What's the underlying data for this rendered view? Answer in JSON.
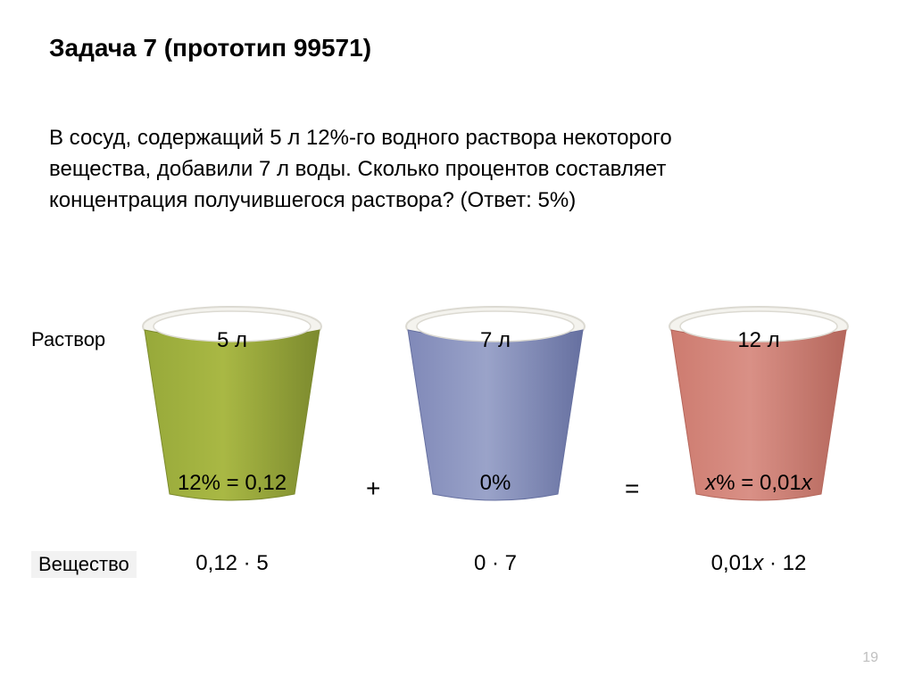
{
  "title": "Задача 7 (прототип 99571)",
  "problem": "В сосуд, содержащий 5 л 12%-го водного раствора некоторого вещества, добавили 7 л воды. Сколько процентов составляет концентрация получившегося раствора? (Ответ: 5%)",
  "labels": {
    "solution": "Раствор",
    "substance": "Вещество"
  },
  "operators": {
    "plus": "+",
    "eq": "="
  },
  "cups": [
    {
      "volume": "5 л",
      "percent": "12% = 0,12",
      "substance": "0,12 · 5",
      "fill_top": "#a9b844",
      "fill_body": "#97a93a",
      "stroke": "#7c8a2e"
    },
    {
      "volume": "7 л",
      "percent": "0%",
      "substance": "0 · 7",
      "fill_top": "#9aa3c9",
      "fill_body": "#8089b8",
      "stroke": "#6670a0"
    },
    {
      "volume": "12 л",
      "percent": "х% = 0,01х",
      "substance": "0,01х · 12",
      "fill_top": "#d99086",
      "fill_body": "#cd7b6f",
      "stroke": "#b5675c"
    }
  ],
  "style": {
    "rim_outer": "#f4f3ee",
    "rim_inner": "#ffffff",
    "rim_stroke": "#dcdad2",
    "italic_color": "#000000"
  },
  "page_number": "19"
}
